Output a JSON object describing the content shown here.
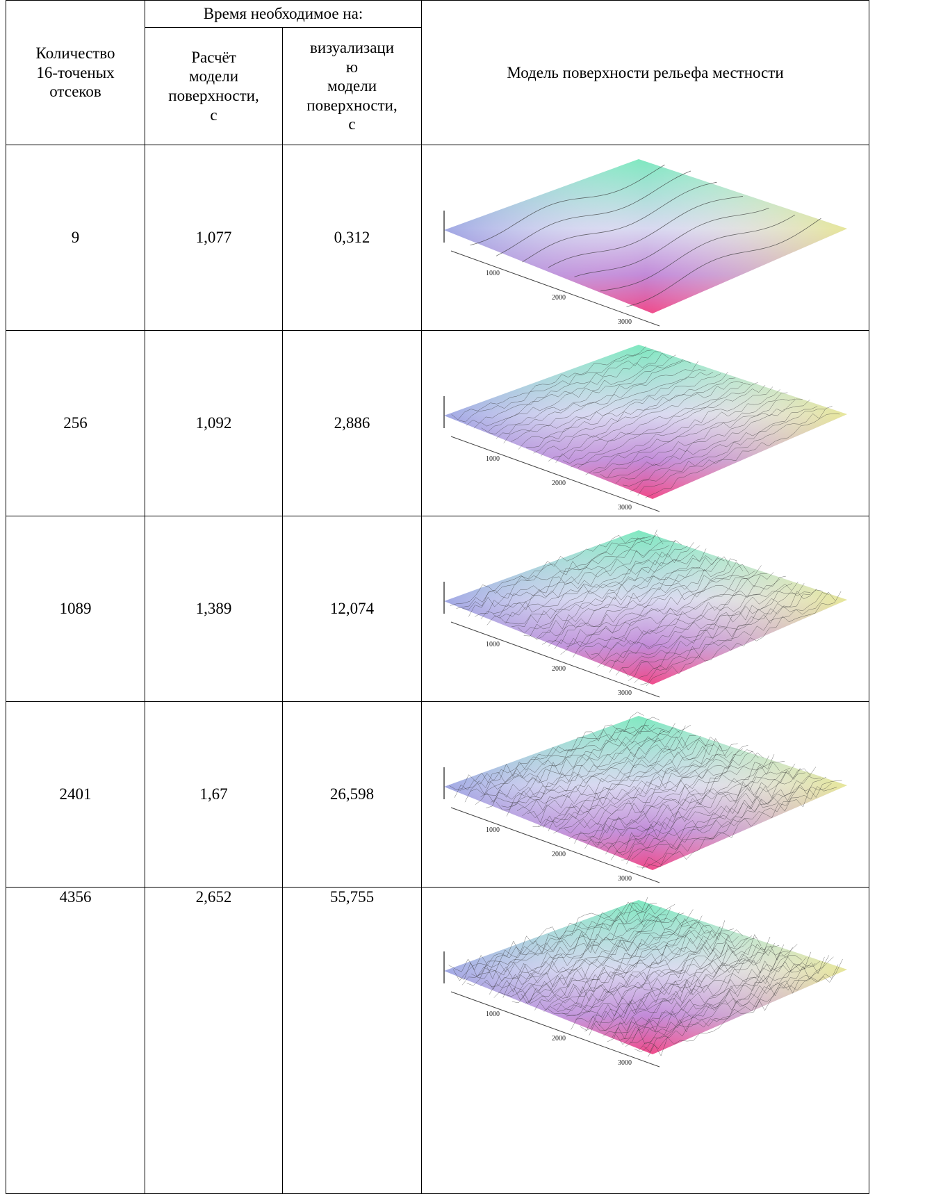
{
  "table": {
    "header": {
      "count": "Количество\n16-точеных\nотсеков",
      "time_group": "Время необходимое на:",
      "calc": "Расчёт\nмодели\nповерхности,\nс",
      "vis": "визуализаци\nю\nмодели\nповерхности,\nс",
      "model": "Модель поверхности рельефа местности"
    },
    "rows": [
      [
        "9",
        "1,077",
        "0,312"
      ],
      [
        "256",
        "1,092",
        "2,886"
      ],
      [
        "1089",
        "1,389",
        "12,074"
      ],
      [
        "2401",
        "1,67",
        "26,598"
      ],
      [
        "4356",
        "2,652",
        "55,755"
      ]
    ],
    "plot_axis_labels": [
      "1000",
      "2000",
      "3000"
    ]
  }
}
